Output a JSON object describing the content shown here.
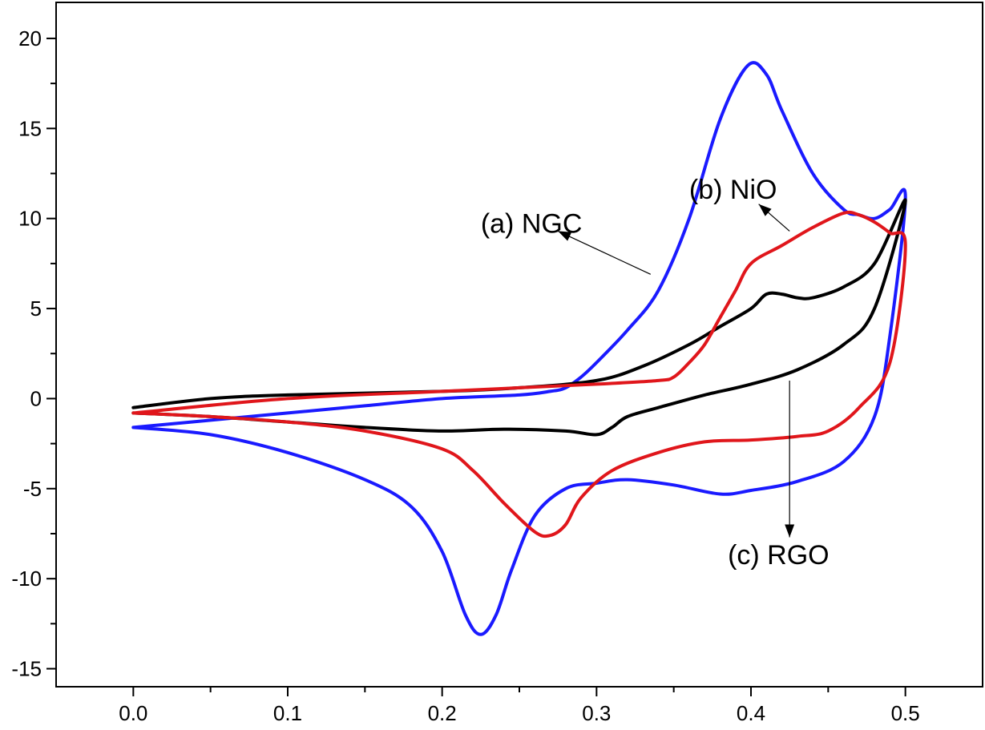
{
  "chart_data": {
    "type": "line",
    "title": "",
    "xlabel": "",
    "ylabel": "",
    "xlim": [
      -0.05,
      0.55
    ],
    "ylim": [
      -16,
      22
    ],
    "x_ticks": [
      "0.0",
      "0.1",
      "0.2",
      "0.3",
      "0.4",
      "0.5"
    ],
    "y_ticks": [
      "-15",
      "-10",
      "-5",
      "0",
      "5",
      "10",
      "15",
      "20"
    ],
    "grid": false,
    "colors": {
      "NGC": "#1a1aff",
      "NiO": "#e0161b",
      "RGO": "#000000"
    },
    "series": [
      {
        "name": "NGC",
        "color": "#1a1aff",
        "points": [
          [
            0.0,
            -1.6
          ],
          [
            0.05,
            -1.2
          ],
          [
            0.1,
            -0.8
          ],
          [
            0.15,
            -0.4
          ],
          [
            0.2,
            0.0
          ],
          [
            0.25,
            0.2
          ],
          [
            0.27,
            0.4
          ],
          [
            0.28,
            0.6
          ],
          [
            0.29,
            1.2
          ],
          [
            0.3,
            2.0
          ],
          [
            0.32,
            3.8
          ],
          [
            0.34,
            6.0
          ],
          [
            0.36,
            10.0
          ],
          [
            0.38,
            15.5
          ],
          [
            0.398,
            18.5
          ],
          [
            0.41,
            18.0
          ],
          [
            0.42,
            16.0
          ],
          [
            0.44,
            12.5
          ],
          [
            0.46,
            10.5
          ],
          [
            0.47,
            10.2
          ],
          [
            0.48,
            10.0
          ],
          [
            0.49,
            10.5
          ],
          [
            0.5,
            11.2
          ],
          [
            0.49,
            3.5
          ],
          [
            0.48,
            -1.0
          ],
          [
            0.46,
            -3.5
          ],
          [
            0.43,
            -4.6
          ],
          [
            0.4,
            -5.1
          ],
          [
            0.38,
            -5.3
          ],
          [
            0.35,
            -4.8
          ],
          [
            0.32,
            -4.5
          ],
          [
            0.3,
            -4.7
          ],
          [
            0.28,
            -5.0
          ],
          [
            0.26,
            -6.5
          ],
          [
            0.245,
            -9.5
          ],
          [
            0.235,
            -12.0
          ],
          [
            0.225,
            -13.1
          ],
          [
            0.215,
            -12.0
          ],
          [
            0.2,
            -8.5
          ],
          [
            0.18,
            -6.0
          ],
          [
            0.15,
            -4.5
          ],
          [
            0.1,
            -3.0
          ],
          [
            0.05,
            -2.0
          ],
          [
            0.0,
            -1.6
          ]
        ]
      },
      {
        "name": "NiO",
        "color": "#e0161b",
        "points": [
          [
            0.0,
            -0.8
          ],
          [
            0.1,
            0.0
          ],
          [
            0.2,
            0.4
          ],
          [
            0.3,
            0.8
          ],
          [
            0.34,
            1.0
          ],
          [
            0.35,
            1.2
          ],
          [
            0.36,
            2.0
          ],
          [
            0.37,
            3.0
          ],
          [
            0.38,
            4.5
          ],
          [
            0.39,
            6.0
          ],
          [
            0.4,
            7.5
          ],
          [
            0.42,
            8.5
          ],
          [
            0.44,
            9.5
          ],
          [
            0.46,
            10.3
          ],
          [
            0.47,
            10.2
          ],
          [
            0.48,
            9.8
          ],
          [
            0.49,
            9.2
          ],
          [
            0.5,
            8.5
          ],
          [
            0.49,
            2.0
          ],
          [
            0.47,
            -0.5
          ],
          [
            0.45,
            -1.8
          ],
          [
            0.43,
            -2.1
          ],
          [
            0.4,
            -2.3
          ],
          [
            0.37,
            -2.4
          ],
          [
            0.34,
            -3.0
          ],
          [
            0.31,
            -4.0
          ],
          [
            0.29,
            -5.5
          ],
          [
            0.28,
            -7.0
          ],
          [
            0.27,
            -7.6
          ],
          [
            0.26,
            -7.4
          ],
          [
            0.24,
            -5.8
          ],
          [
            0.22,
            -4.0
          ],
          [
            0.2,
            -2.8
          ],
          [
            0.15,
            -1.8
          ],
          [
            0.1,
            -1.3
          ],
          [
            0.05,
            -1.0
          ],
          [
            0.0,
            -0.8
          ]
        ]
      },
      {
        "name": "RGO",
        "color": "#000000",
        "points": [
          [
            0.0,
            -0.5
          ],
          [
            0.05,
            0.0
          ],
          [
            0.1,
            0.2
          ],
          [
            0.2,
            0.4
          ],
          [
            0.25,
            0.6
          ],
          [
            0.3,
            1.0
          ],
          [
            0.33,
            1.8
          ],
          [
            0.36,
            3.0
          ],
          [
            0.38,
            4.0
          ],
          [
            0.4,
            5.0
          ],
          [
            0.41,
            5.8
          ],
          [
            0.42,
            5.8
          ],
          [
            0.43,
            5.6
          ],
          [
            0.44,
            5.6
          ],
          [
            0.46,
            6.2
          ],
          [
            0.48,
            7.5
          ],
          [
            0.5,
            11.0
          ],
          [
            0.48,
            5.0
          ],
          [
            0.46,
            3.0
          ],
          [
            0.43,
            1.6
          ],
          [
            0.4,
            0.8
          ],
          [
            0.37,
            0.2
          ],
          [
            0.34,
            -0.5
          ],
          [
            0.32,
            -1.0
          ],
          [
            0.31,
            -1.6
          ],
          [
            0.3,
            -2.0
          ],
          [
            0.28,
            -1.8
          ],
          [
            0.24,
            -1.7
          ],
          [
            0.2,
            -1.8
          ],
          [
            0.15,
            -1.6
          ],
          [
            0.1,
            -1.3
          ],
          [
            0.05,
            -1.0
          ],
          [
            0.0,
            -0.8
          ]
        ]
      }
    ],
    "annotations": [
      {
        "text": "(a) NGC",
        "series": "NGC",
        "arrow_tail": [
          0.335,
          6.9
        ],
        "arrow_head": [
          0.275,
          9.3
        ],
        "text_pos": [
          0.225,
          9.2
        ]
      },
      {
        "text": "(b) NiO",
        "series": "NiO",
        "arrow_tail": [
          0.425,
          9.3
        ],
        "arrow_head": [
          0.405,
          10.8
        ],
        "text_pos": [
          0.36,
          11.1
        ]
      },
      {
        "text": "(c) RGO",
        "series": "RGO",
        "arrow_tail": [
          0.425,
          1.0
        ],
        "arrow_head": [
          0.425,
          -7.7
        ],
        "text_pos": [
          0.385,
          -9.2
        ]
      }
    ]
  }
}
